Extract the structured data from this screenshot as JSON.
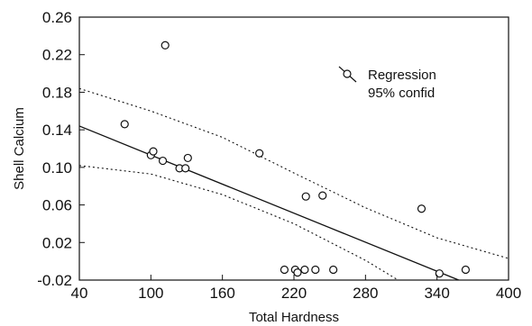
{
  "chart_data": {
    "type": "scatter",
    "xlabel": "Total Hardness",
    "ylabel": "Shell Calcium",
    "xlim": [
      40,
      400
    ],
    "ylim": [
      -0.02,
      0.26
    ],
    "xticks": [
      40,
      100,
      160,
      220,
      280,
      340,
      400
    ],
    "yticks": [
      -0.02,
      0.02,
      0.06,
      0.1,
      0.14,
      0.18,
      0.22,
      0.26
    ],
    "yticklabels": [
      "-0.02",
      "0.02",
      "0.06",
      "0.10",
      "0.14",
      "0.18",
      "0.22",
      "0.26"
    ],
    "grid": false,
    "legend": {
      "position": "top-right",
      "entries": [
        "Regression",
        "95% confid"
      ]
    },
    "points": [
      {
        "x": 78,
        "y": 0.146
      },
      {
        "x": 100,
        "y": 0.113
      },
      {
        "x": 102,
        "y": 0.117
      },
      {
        "x": 110,
        "y": 0.107
      },
      {
        "x": 112,
        "y": 0.23
      },
      {
        "x": 124,
        "y": 0.099
      },
      {
        "x": 129,
        "y": 0.099
      },
      {
        "x": 131,
        "y": 0.11
      },
      {
        "x": 191,
        "y": 0.115
      },
      {
        "x": 212,
        "y": -0.009
      },
      {
        "x": 221,
        "y": -0.009
      },
      {
        "x": 223,
        "y": -0.012
      },
      {
        "x": 229,
        "y": -0.009
      },
      {
        "x": 230,
        "y": 0.069
      },
      {
        "x": 238,
        "y": -0.009
      },
      {
        "x": 244,
        "y": 0.07
      },
      {
        "x": 253,
        "y": -0.009
      },
      {
        "x": 327,
        "y": 0.056
      },
      {
        "x": 342,
        "y": -0.013
      },
      {
        "x": 364,
        "y": -0.009
      }
    ],
    "regression": [
      {
        "x": 40,
        "y": 0.144
      },
      {
        "x": 364,
        "y": -0.023
      }
    ],
    "ci_upper": [
      {
        "x": 40,
        "y": 0.184
      },
      {
        "x": 100,
        "y": 0.16
      },
      {
        "x": 160,
        "y": 0.132
      },
      {
        "x": 220,
        "y": 0.094
      },
      {
        "x": 280,
        "y": 0.057
      },
      {
        "x": 340,
        "y": 0.025
      },
      {
        "x": 400,
        "y": 0.003
      }
    ],
    "ci_lower": [
      {
        "x": 40,
        "y": 0.102
      },
      {
        "x": 100,
        "y": 0.093
      },
      {
        "x": 160,
        "y": 0.071
      },
      {
        "x": 220,
        "y": 0.04
      },
      {
        "x": 280,
        "y": 0.001
      },
      {
        "x": 310,
        "y": -0.022
      }
    ]
  }
}
